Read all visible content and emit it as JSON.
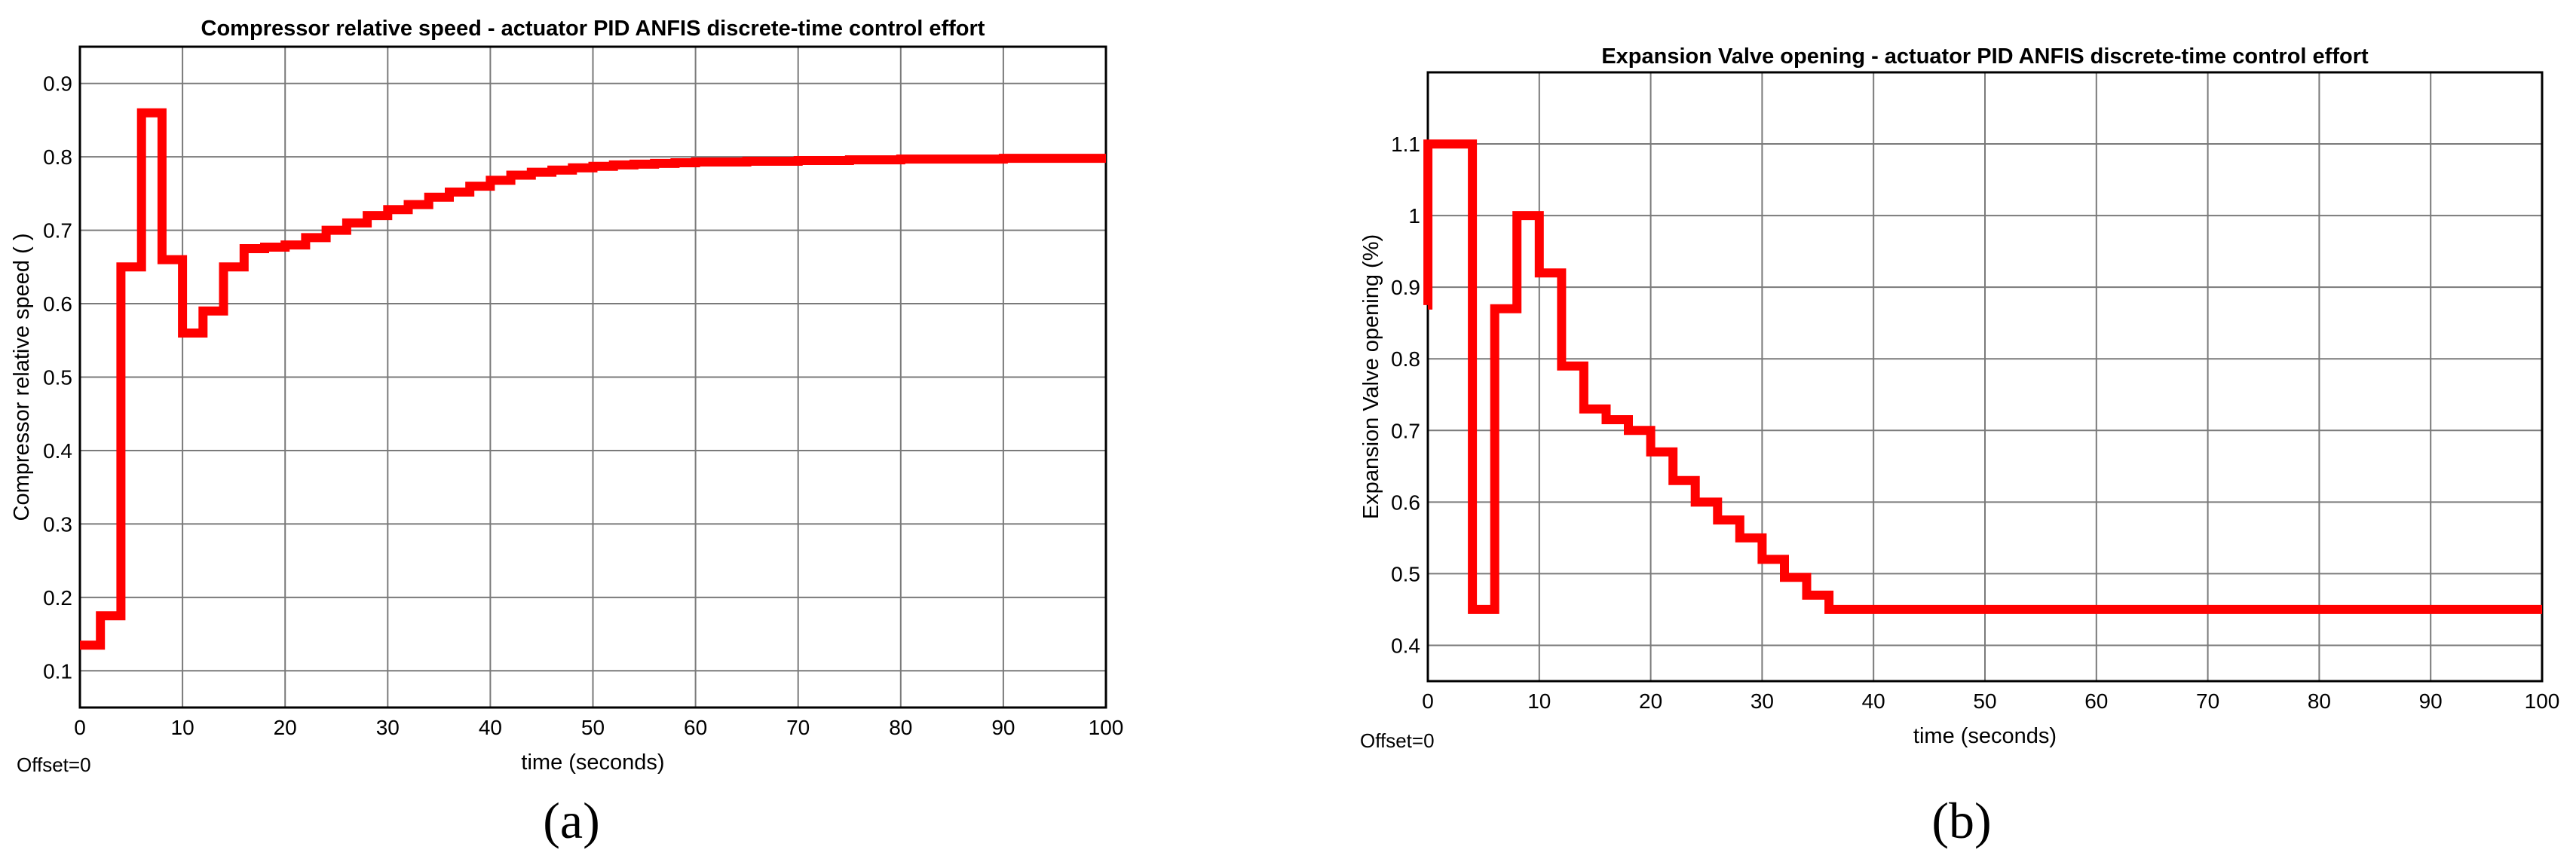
{
  "chart_data": [
    {
      "type": "line",
      "title": "Compressor relative speed - actuator PID ANFIS discrete-time control effort",
      "xlabel": "time (seconds)",
      "ylabel": "Compressor relative speed ( )",
      "xlim": [
        0,
        100
      ],
      "ylim": [
        0.05,
        0.95
      ],
      "xticks": [
        0,
        10,
        20,
        30,
        40,
        50,
        60,
        70,
        80,
        90,
        100
      ],
      "yticks": [
        0.1,
        0.2,
        0.3,
        0.4,
        0.5,
        0.6,
        0.7,
        0.8,
        0.9
      ],
      "grid": true,
      "offset_label": "Offset=0",
      "panel_label": "(a)",
      "color": "#ff0000",
      "series": [
        {
          "step": "post",
          "x": [
            0,
            2,
            4,
            6,
            8,
            10,
            12,
            14,
            16,
            18,
            20,
            22,
            24,
            26,
            28,
            30,
            32,
            34,
            36,
            38,
            40,
            42,
            44,
            46,
            48,
            50,
            52,
            54,
            56,
            58,
            60,
            65,
            70,
            75,
            80,
            85,
            90,
            95,
            100
          ],
          "values": [
            0.135,
            0.175,
            0.65,
            0.86,
            0.66,
            0.56,
            0.59,
            0.65,
            0.675,
            0.677,
            0.68,
            0.69,
            0.7,
            0.71,
            0.72,
            0.728,
            0.735,
            0.745,
            0.752,
            0.76,
            0.768,
            0.775,
            0.779,
            0.782,
            0.785,
            0.787,
            0.789,
            0.79,
            0.791,
            0.792,
            0.793,
            0.794,
            0.795,
            0.796,
            0.797,
            0.797,
            0.798,
            0.798,
            0.798
          ]
        }
      ]
    },
    {
      "type": "line",
      "title": "Expansion Valve opening - actuator PID ANFIS discrete-time control effort",
      "xlabel": "time (seconds)",
      "ylabel": "Expansion Valve opening (%)",
      "xlim": [
        0,
        100
      ],
      "ylim": [
        0.35,
        1.2
      ],
      "xticks": [
        0,
        10,
        20,
        30,
        40,
        50,
        60,
        70,
        80,
        90,
        100
      ],
      "yticks": [
        0.4,
        0.5,
        0.6,
        0.7,
        0.8,
        0.9,
        1,
        1.1
      ],
      "grid": true,
      "offset_label": "Offset=0",
      "panel_label": "(b)",
      "color": "#ff0000",
      "series": [
        {
          "step": "post",
          "x": [
            0,
            0.01,
            4,
            6,
            8,
            10,
            12,
            14,
            16,
            18,
            20,
            22,
            24,
            26,
            28,
            30,
            32,
            34,
            36,
            100
          ],
          "values": [
            0.875,
            1.1,
            0.45,
            0.87,
            1.0,
            0.92,
            0.79,
            0.73,
            0.715,
            0.7,
            0.67,
            0.63,
            0.6,
            0.575,
            0.55,
            0.52,
            0.495,
            0.47,
            0.45,
            0.45
          ]
        }
      ]
    }
  ]
}
